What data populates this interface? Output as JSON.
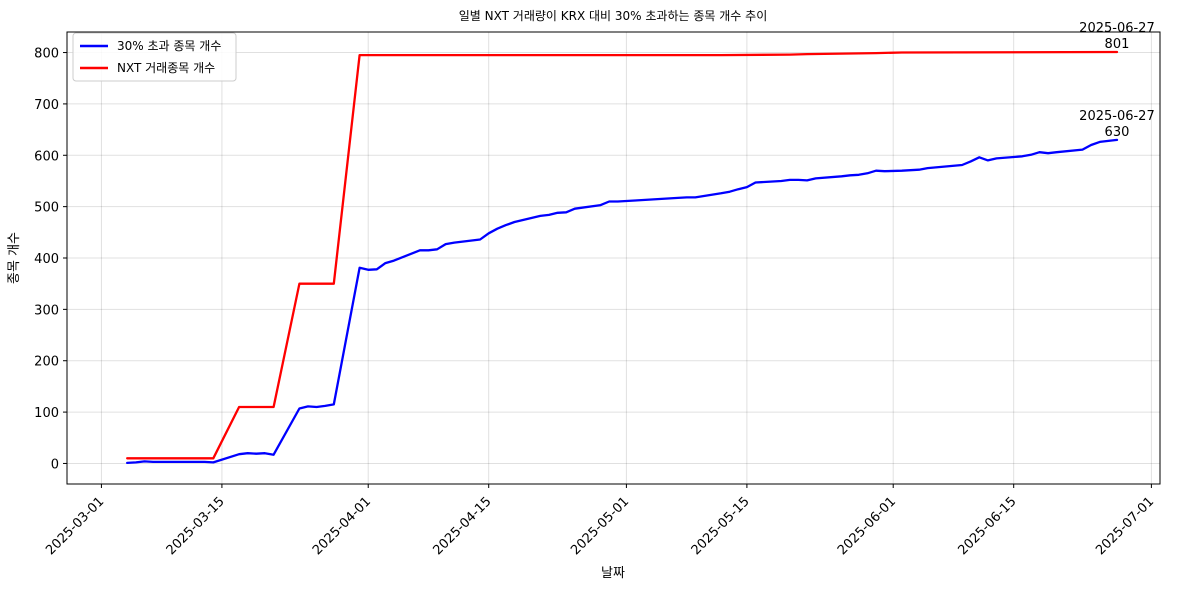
{
  "chart_data": {
    "type": "line",
    "title": "일별 NXT 거래량이 KRX 대비 30% 초과하는 종목 개수 추이",
    "xlabel": "날짜",
    "ylabel": "종목 개수",
    "xlim": [
      "2025-02-25",
      "2025-07-02"
    ],
    "ylim": [
      -40,
      840
    ],
    "grid": true,
    "legend_position": "top-left",
    "x_ticks": [
      "2025-03-01",
      "2025-03-15",
      "2025-04-01",
      "2025-04-15",
      "2025-05-01",
      "2025-05-15",
      "2025-06-01",
      "2025-06-15",
      "2025-07-01"
    ],
    "y_ticks": [
      0,
      100,
      200,
      300,
      400,
      500,
      600,
      700,
      800
    ],
    "series": [
      {
        "name": "30% 초과 종목 개수",
        "color": "#0000ff",
        "points": [
          [
            "2025-03-04",
            1
          ],
          [
            "2025-03-05",
            2
          ],
          [
            "2025-03-06",
            4
          ],
          [
            "2025-03-07",
            3
          ],
          [
            "2025-03-10",
            3
          ],
          [
            "2025-03-11",
            3
          ],
          [
            "2025-03-12",
            3
          ],
          [
            "2025-03-13",
            3
          ],
          [
            "2025-03-14",
            2
          ],
          [
            "2025-03-17",
            18
          ],
          [
            "2025-03-18",
            20
          ],
          [
            "2025-03-19",
            19
          ],
          [
            "2025-03-20",
            20
          ],
          [
            "2025-03-21",
            17
          ],
          [
            "2025-03-24",
            107
          ],
          [
            "2025-03-25",
            111
          ],
          [
            "2025-03-26",
            110
          ],
          [
            "2025-03-27",
            112
          ],
          [
            "2025-03-28",
            115
          ],
          [
            "2025-03-31",
            381
          ],
          [
            "2025-04-01",
            377
          ],
          [
            "2025-04-02",
            378
          ],
          [
            "2025-04-03",
            390
          ],
          [
            "2025-04-04",
            395
          ],
          [
            "2025-04-07",
            415
          ],
          [
            "2025-04-08",
            415
          ],
          [
            "2025-04-09",
            417
          ],
          [
            "2025-04-10",
            427
          ],
          [
            "2025-04-11",
            430
          ],
          [
            "2025-04-14",
            436
          ],
          [
            "2025-04-15",
            448
          ],
          [
            "2025-04-16",
            457
          ],
          [
            "2025-04-17",
            464
          ],
          [
            "2025-04-18",
            470
          ],
          [
            "2025-04-21",
            482
          ],
          [
            "2025-04-22",
            484
          ],
          [
            "2025-04-23",
            488
          ],
          [
            "2025-04-24",
            489
          ],
          [
            "2025-04-25",
            496
          ],
          [
            "2025-04-28",
            503
          ],
          [
            "2025-04-29",
            510
          ],
          [
            "2025-04-30",
            510
          ],
          [
            "2025-05-02",
            512
          ],
          [
            "2025-05-07",
            517
          ],
          [
            "2025-05-08",
            518
          ],
          [
            "2025-05-09",
            518
          ],
          [
            "2025-05-12",
            526
          ],
          [
            "2025-05-13",
            529
          ],
          [
            "2025-05-14",
            534
          ],
          [
            "2025-05-15",
            538
          ],
          [
            "2025-05-16",
            547
          ],
          [
            "2025-05-19",
            550
          ],
          [
            "2025-05-20",
            552
          ],
          [
            "2025-05-21",
            552
          ],
          [
            "2025-05-22",
            551
          ],
          [
            "2025-05-23",
            555
          ],
          [
            "2025-05-26",
            559
          ],
          [
            "2025-05-27",
            561
          ],
          [
            "2025-05-28",
            562
          ],
          [
            "2025-05-29",
            565
          ],
          [
            "2025-05-30",
            570
          ],
          [
            "2025-05-31",
            569
          ],
          [
            "2025-06-02",
            570
          ],
          [
            "2025-06-04",
            572
          ],
          [
            "2025-06-05",
            575
          ],
          [
            "2025-06-09",
            581
          ],
          [
            "2025-06-10",
            588
          ],
          [
            "2025-06-11",
            596
          ],
          [
            "2025-06-12",
            590
          ],
          [
            "2025-06-13",
            594
          ],
          [
            "2025-06-16",
            598
          ],
          [
            "2025-06-17",
            601
          ],
          [
            "2025-06-18",
            606
          ],
          [
            "2025-06-19",
            604
          ],
          [
            "2025-06-20",
            606
          ],
          [
            "2025-06-23",
            611
          ],
          [
            "2025-06-24",
            620
          ],
          [
            "2025-06-25",
            626
          ],
          [
            "2025-06-26",
            628
          ],
          [
            "2025-06-27",
            630
          ]
        ]
      },
      {
        "name": "NXT 거래종목 개수",
        "color": "#ff0000",
        "points": [
          [
            "2025-03-04",
            10
          ],
          [
            "2025-03-14",
            10
          ],
          [
            "2025-03-17",
            110
          ],
          [
            "2025-03-21",
            110
          ],
          [
            "2025-03-24",
            350
          ],
          [
            "2025-03-28",
            350
          ],
          [
            "2025-03-31",
            795
          ],
          [
            "2025-05-12",
            795
          ],
          [
            "2025-05-20",
            796
          ],
          [
            "2025-05-22",
            797
          ],
          [
            "2025-05-26",
            798
          ],
          [
            "2025-05-30",
            799
          ],
          [
            "2025-06-02",
            800
          ],
          [
            "2025-06-27",
            801
          ]
        ]
      }
    ],
    "annotations": [
      {
        "date_label": "2025-06-27",
        "value_label": "801",
        "x": "2025-06-27",
        "y": 801
      },
      {
        "date_label": "2025-06-27",
        "value_label": "630",
        "x": "2025-06-27",
        "y": 630
      }
    ]
  }
}
